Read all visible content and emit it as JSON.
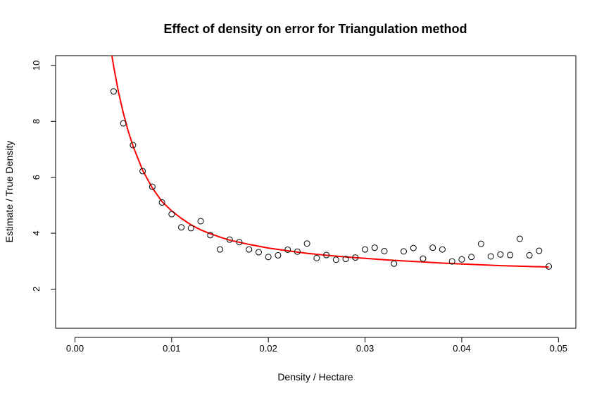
{
  "chart_data": {
    "type": "scatter",
    "title": "Effect of density on error for Triangulation method",
    "xlabel": "Density / Hectare",
    "ylabel": "Estimate / True Density",
    "xlim": [
      -0.002,
      0.0518
    ],
    "ylim": [
      0.6,
      10.35
    ],
    "x_ticks": [
      0.0,
      0.01,
      0.02,
      0.03,
      0.04,
      0.05
    ],
    "x_tick_labels": [
      "0.00",
      "0.01",
      "0.02",
      "0.03",
      "0.04",
      "0.05"
    ],
    "y_ticks": [
      2,
      4,
      6,
      8,
      10
    ],
    "y_tick_labels": [
      "2",
      "4",
      "6",
      "8",
      "10"
    ],
    "grid": false,
    "series": [
      {
        "kind": "points",
        "marker": "open-circle",
        "color": "#000000",
        "x": [
          0.004,
          0.005,
          0.006,
          0.007,
          0.008,
          0.009,
          0.01,
          0.011,
          0.012,
          0.013,
          0.014,
          0.015,
          0.016,
          0.017,
          0.018,
          0.019,
          0.02,
          0.021,
          0.022,
          0.023,
          0.024,
          0.025,
          0.026,
          0.027,
          0.028,
          0.029,
          0.03,
          0.031,
          0.032,
          0.033,
          0.034,
          0.035,
          0.036,
          0.037,
          0.038,
          0.039,
          0.04,
          0.041,
          0.042,
          0.043,
          0.044,
          0.045,
          0.046,
          0.047,
          0.048,
          0.049
        ],
        "y": [
          9.07,
          7.93,
          7.15,
          6.22,
          5.66,
          5.1,
          4.68,
          4.21,
          4.18,
          4.43,
          3.93,
          3.42,
          3.77,
          3.68,
          3.42,
          3.32,
          3.15,
          3.21,
          3.41,
          3.34,
          3.63,
          3.11,
          3.22,
          3.05,
          3.08,
          3.13,
          3.42,
          3.48,
          3.36,
          2.91,
          3.35,
          3.47,
          3.09,
          3.48,
          3.42,
          2.99,
          3.06,
          3.15,
          3.62,
          3.17,
          3.24,
          3.22,
          3.8,
          3.21,
          3.37,
          2.81
        ]
      },
      {
        "kind": "fitted-curve",
        "color": "#ff0000",
        "x": [
          0.0038,
          0.004,
          0.0045,
          0.005,
          0.0055,
          0.006,
          0.007,
          0.008,
          0.009,
          0.01,
          0.011,
          0.012,
          0.013,
          0.014,
          0.015,
          0.016,
          0.018,
          0.02,
          0.022,
          0.024,
          0.026,
          0.028,
          0.03,
          0.032,
          0.034,
          0.036,
          0.038,
          0.04,
          0.042,
          0.044,
          0.046,
          0.048,
          0.049
        ],
        "y": [
          10.4,
          9.97,
          9.05,
          8.3,
          7.66,
          7.12,
          6.25,
          5.62,
          5.13,
          4.8,
          4.53,
          4.3,
          4.12,
          3.98,
          3.86,
          3.75,
          3.6,
          3.47,
          3.37,
          3.28,
          3.21,
          3.15,
          3.1,
          3.05,
          3.01,
          2.97,
          2.93,
          2.9,
          2.87,
          2.84,
          2.82,
          2.8,
          2.79
        ]
      }
    ]
  }
}
